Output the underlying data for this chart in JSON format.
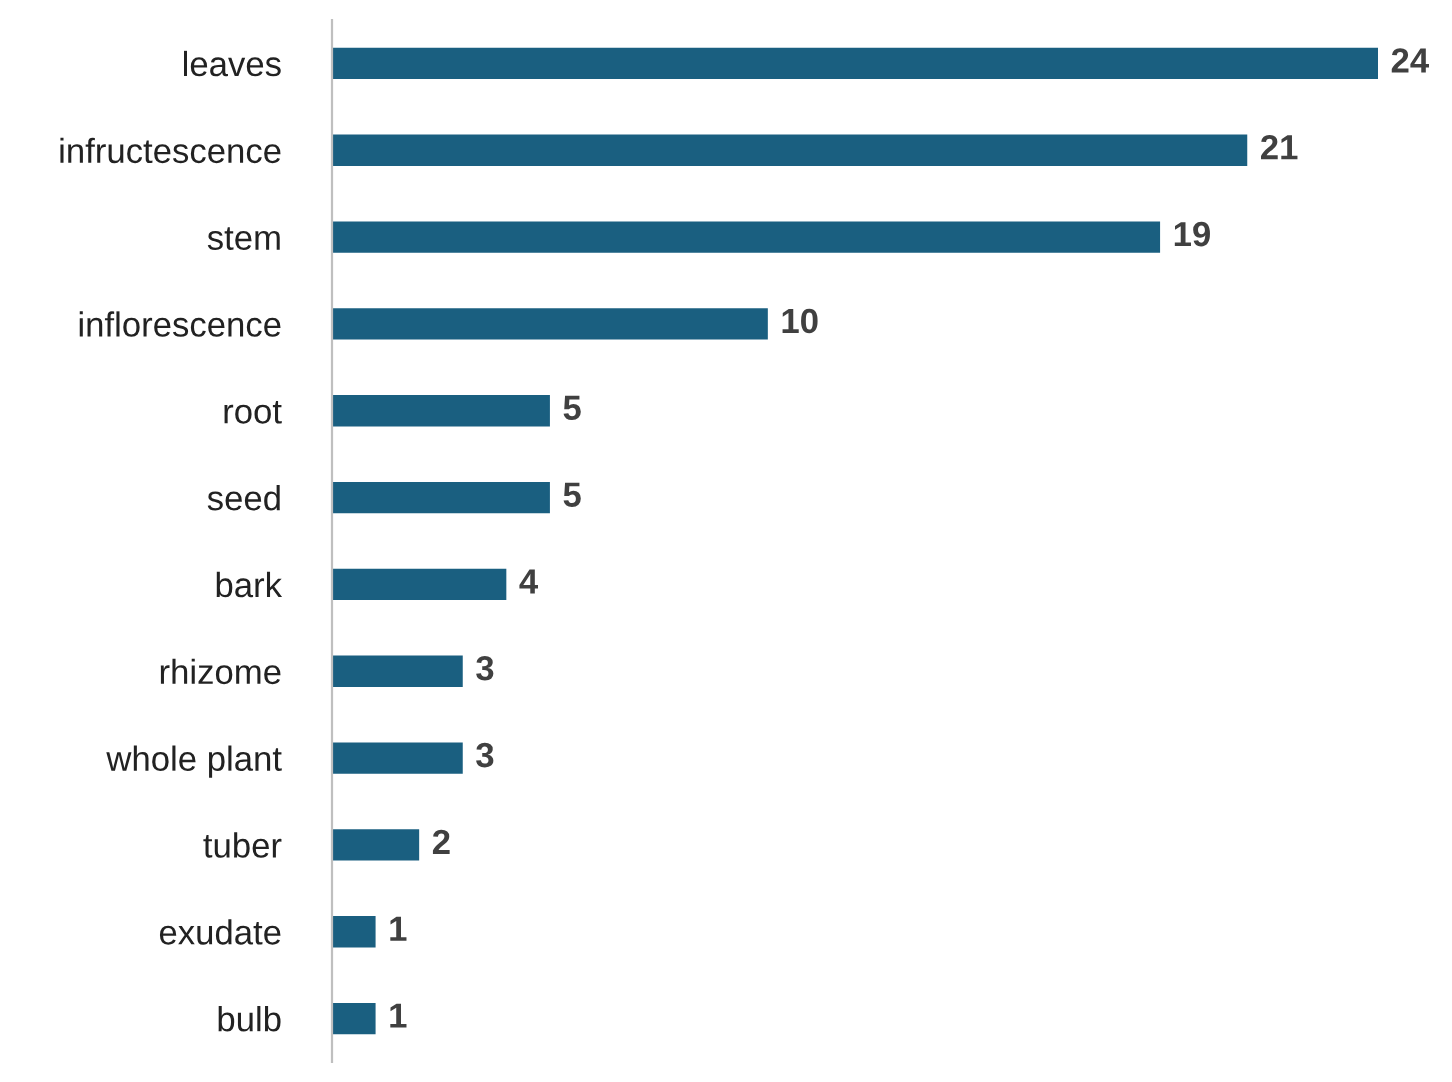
{
  "chart_data": {
    "type": "bar",
    "orientation": "horizontal",
    "categories": [
      "leaves",
      "infructescence",
      "stem",
      "inflorescence",
      "root",
      "seed",
      "bark",
      "rhizome",
      "whole plant",
      "tuber",
      "exudate",
      "bulb"
    ],
    "values": [
      24,
      21,
      19,
      10,
      5,
      5,
      4,
      3,
      3,
      2,
      1,
      1
    ],
    "color": "#1a5f80",
    "data_labels": true,
    "grid": false,
    "legend": false
  }
}
